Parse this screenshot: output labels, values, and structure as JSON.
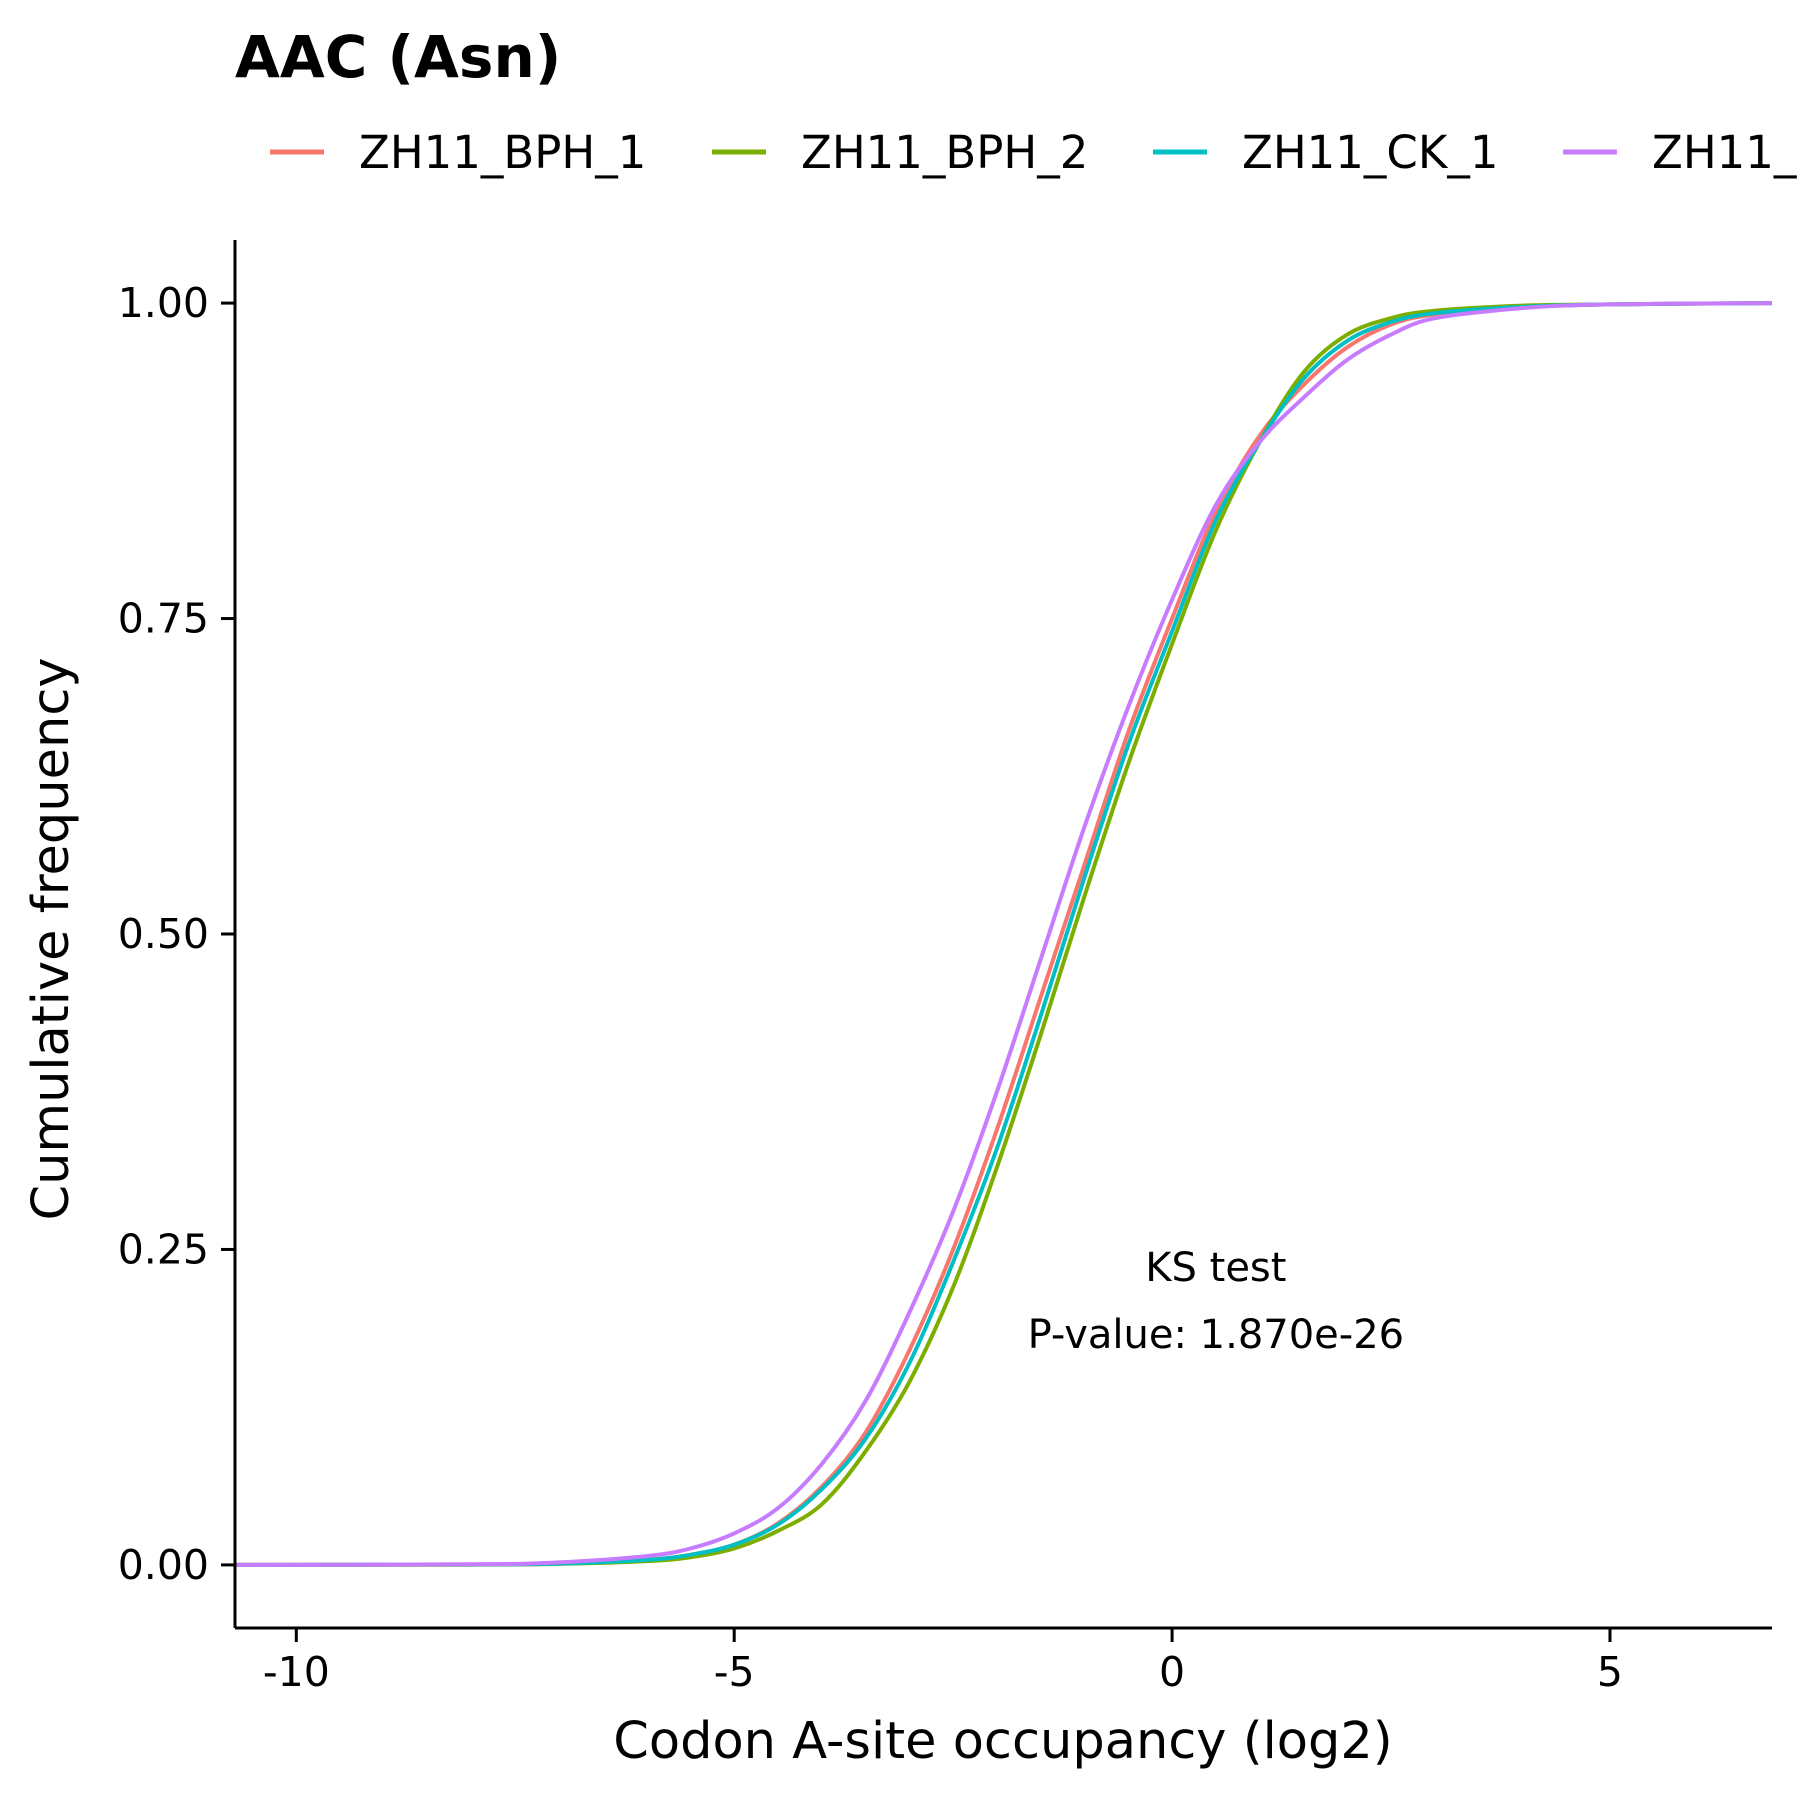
{
  "chart_data": {
    "type": "line",
    "title": "AAC (Asn)",
    "xlabel": "Codon A-site occupancy (log2)",
    "ylabel": "Cumulative frequency",
    "xlim": [
      -10.7,
      6.85
    ],
    "ylim": [
      -0.05,
      1.05
    ],
    "xticks": [
      -10,
      -5,
      0,
      5
    ],
    "xtick_labels": [
      "-10",
      "-5",
      "0",
      "5"
    ],
    "yticks": [
      0,
      0.25,
      0.5,
      0.75,
      1.0
    ],
    "ytick_labels": [
      "0.00",
      "0.25",
      "0.50",
      "0.75",
      "1.00"
    ],
    "grid": false,
    "legend_position": "top",
    "annotation": {
      "line1": "KS test",
      "line2": "P-value: 1.870e-26",
      "x": 0.5,
      "y1": 0.225,
      "y2": 0.172
    },
    "series": [
      {
        "name": "ZH11_BPH_1",
        "color": "#F8766D",
        "x": [
          -10.7,
          -8,
          -7,
          -6,
          -5.5,
          -5,
          -4.5,
          -4,
          -3.5,
          -3,
          -2.5,
          -2,
          -1.5,
          -1,
          -0.5,
          0,
          0.5,
          1,
          1.5,
          2,
          2.5,
          3,
          4,
          5,
          6.85
        ],
        "y": [
          0,
          0.0003,
          0.001,
          0.004,
          0.008,
          0.016,
          0.033,
          0.062,
          0.105,
          0.17,
          0.25,
          0.345,
          0.45,
          0.555,
          0.66,
          0.75,
          0.835,
          0.895,
          0.935,
          0.965,
          0.983,
          0.991,
          0.997,
          0.999,
          1.0
        ]
      },
      {
        "name": "ZH11_BPH_2",
        "color": "#7CAE00",
        "x": [
          -10.7,
          -8,
          -7,
          -6,
          -5.5,
          -5,
          -4.5,
          -4,
          -3.5,
          -3,
          -2.5,
          -2,
          -1.5,
          -1,
          -0.5,
          0,
          0.5,
          1,
          1.5,
          2,
          2.5,
          3,
          4,
          5,
          6.85
        ],
        "y": [
          0,
          0.0002,
          0.0008,
          0.003,
          0.006,
          0.013,
          0.027,
          0.048,
          0.09,
          0.145,
          0.22,
          0.315,
          0.42,
          0.53,
          0.635,
          0.73,
          0.82,
          0.89,
          0.945,
          0.975,
          0.988,
          0.994,
          0.998,
          0.999,
          1.0
        ]
      },
      {
        "name": "ZH11_CK_1",
        "color": "#00BFC4",
        "x": [
          -10.7,
          -8,
          -7,
          -6,
          -5.5,
          -5,
          -4.5,
          -4,
          -3.5,
          -3,
          -2.5,
          -2,
          -1.5,
          -1,
          -0.5,
          0,
          0.5,
          1,
          1.5,
          2,
          2.5,
          3,
          4,
          5,
          6.85
        ],
        "y": [
          0,
          0.0003,
          0.001,
          0.004,
          0.008,
          0.016,
          0.032,
          0.06,
          0.1,
          0.16,
          0.24,
          0.33,
          0.435,
          0.545,
          0.65,
          0.74,
          0.828,
          0.89,
          0.94,
          0.97,
          0.985,
          0.992,
          0.997,
          0.999,
          1.0
        ]
      },
      {
        "name": "ZH11_",
        "color": "#C77CFF",
        "x": [
          -10.7,
          -8,
          -7,
          -6,
          -5.5,
          -5,
          -4.5,
          -4,
          -3.5,
          -3,
          -2.5,
          -2,
          -1.5,
          -1,
          -0.5,
          0,
          0.5,
          1,
          1.5,
          2,
          2.5,
          3,
          4,
          5,
          6.85
        ],
        "y": [
          0,
          0.0005,
          0.002,
          0.007,
          0.013,
          0.025,
          0.045,
          0.08,
          0.13,
          0.2,
          0.28,
          0.375,
          0.48,
          0.585,
          0.68,
          0.765,
          0.84,
          0.89,
          0.925,
          0.955,
          0.975,
          0.988,
          0.996,
          0.999,
          1.0
        ]
      }
    ]
  }
}
